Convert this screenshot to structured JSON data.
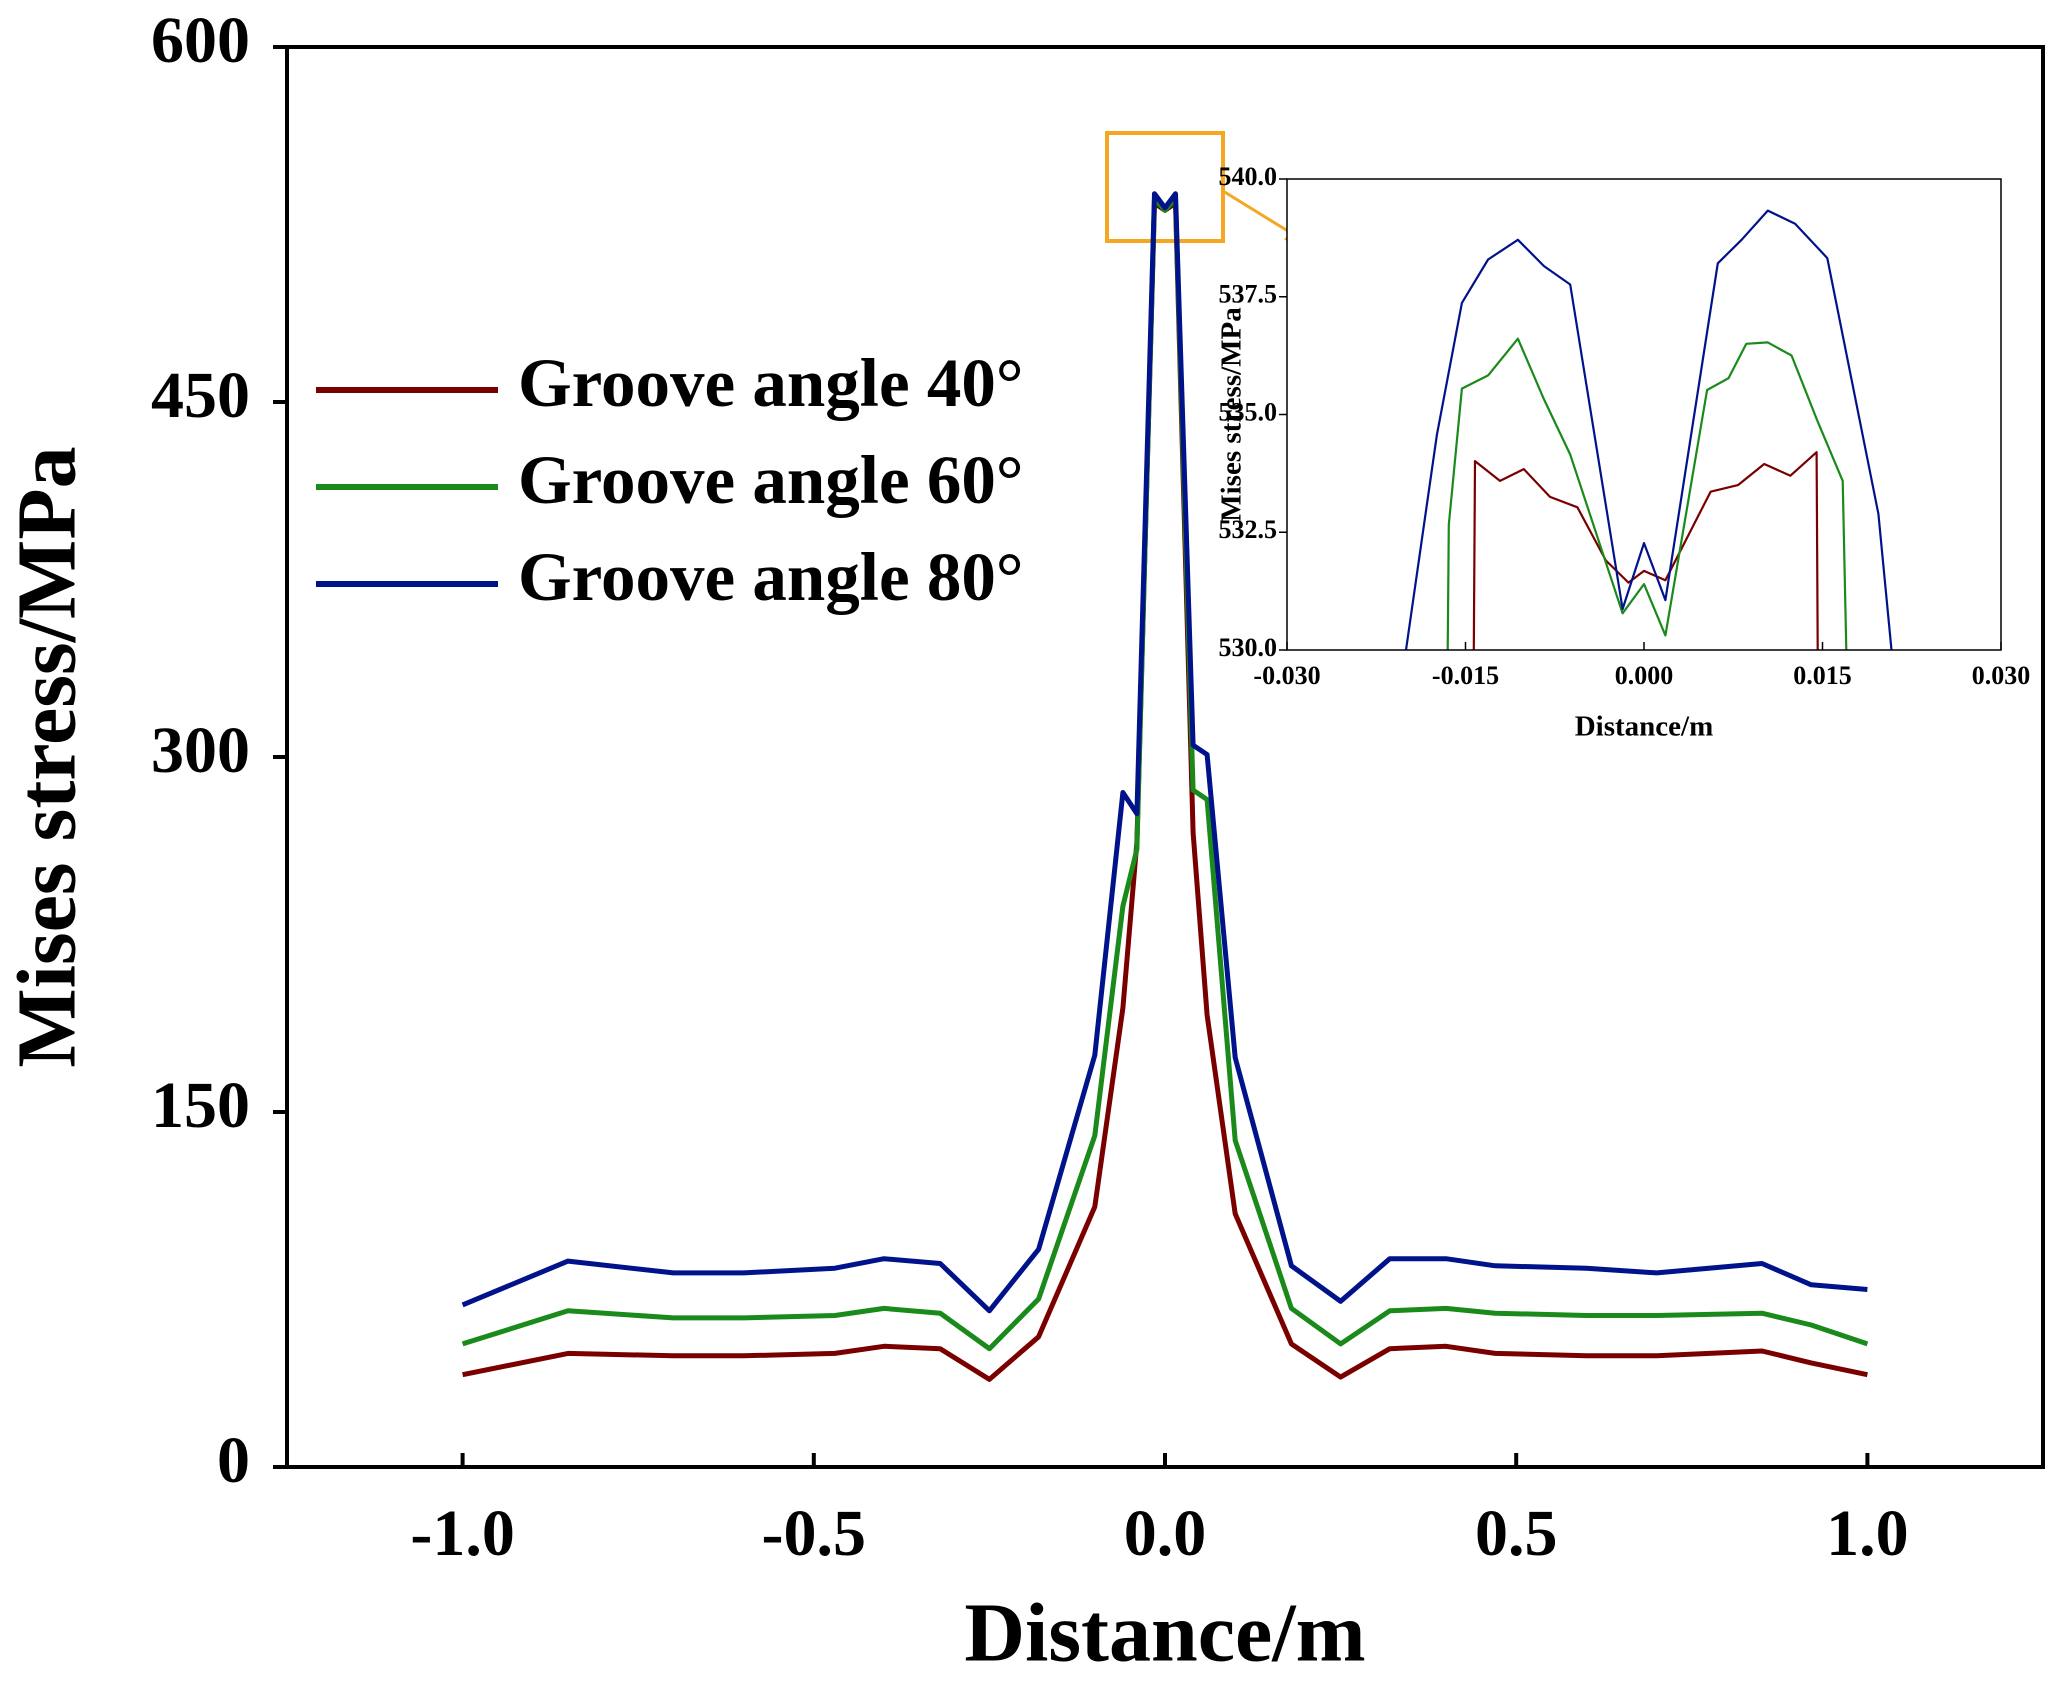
{
  "chart_data": [
    {
      "type": "line",
      "xlabel": "Distance/m",
      "ylabel": "Mises stress/MPa",
      "xlim": [
        -1.25,
        1.25
      ],
      "ylim": [
        0,
        600
      ],
      "xticks": [
        {
          "value": -1,
          "label": "-1.0"
        },
        -0.5,
        {
          "value": 0,
          "label": "0.0"
        },
        0.5,
        {
          "value": 1,
          "label": "1.0"
        }
      ],
      "yticks": [
        0,
        150,
        300,
        450,
        600
      ],
      "legend": "upper left",
      "series": [
        {
          "name": "Groove angle 40°",
          "color": "#7a0000",
          "x": [
            -1,
            -0.85,
            -0.7,
            -0.6,
            -0.47,
            -0.4,
            -0.32,
            -0.25,
            -0.18,
            -0.1,
            -0.06,
            -0.04,
            -0.015,
            0,
            0.015,
            0.04,
            0.06,
            0.1,
            0.18,
            0.25,
            0.32,
            0.4,
            0.47,
            0.6,
            0.7,
            0.85,
            0.92,
            1
          ],
          "values": [
            39,
            48,
            47,
            47,
            48,
            51,
            50,
            37,
            55,
            110,
            194,
            264,
            534,
            531,
            534,
            268,
            191,
            107,
            52,
            38,
            50,
            51,
            48,
            47,
            47,
            49,
            44,
            39
          ]
        },
        {
          "name": "Groove angle 60°",
          "color": "#1a8a1a",
          "x": [
            -1,
            -0.85,
            -0.7,
            -0.6,
            -0.47,
            -0.4,
            -0.32,
            -0.25,
            -0.18,
            -0.1,
            -0.06,
            -0.04,
            -0.015,
            0,
            0.015,
            0.04,
            0.06,
            0.1,
            0.18,
            0.25,
            0.32,
            0.4,
            0.47,
            0.6,
            0.7,
            0.85,
            0.92,
            1
          ],
          "values": [
            52,
            66,
            63,
            63,
            64,
            67,
            65,
            50,
            71,
            140,
            237,
            261,
            536,
            531,
            536,
            286,
            282,
            138,
            67,
            52,
            66,
            67,
            65,
            64,
            64,
            65,
            60,
            52
          ]
        },
        {
          "name": "Groove angle 80°",
          "color": "#00138a",
          "x": [
            -1,
            -0.85,
            -0.7,
            -0.6,
            -0.47,
            -0.4,
            -0.32,
            -0.25,
            -0.18,
            -0.1,
            -0.06,
            -0.04,
            -0.015,
            0,
            0.015,
            0.04,
            0.06,
            0.1,
            0.18,
            0.25,
            0.32,
            0.4,
            0.47,
            0.6,
            0.7,
            0.85,
            0.92,
            1
          ],
          "values": [
            68.5,
            87,
            82,
            82,
            84,
            88,
            86,
            66,
            92,
            174,
            285,
            276,
            538,
            532,
            538,
            305,
            301,
            173,
            85,
            70,
            88,
            88,
            85,
            84,
            82,
            86,
            77,
            75
          ]
        }
      ]
    },
    {
      "type": "line",
      "xlabel": "Distance/m",
      "ylabel": "Mises stress/MPa",
      "xlim": [
        -0.03,
        0.03
      ],
      "ylim": [
        530,
        540
      ],
      "xticks": [
        {
          "value": -0.03,
          "label": "-0.030"
        },
        -0.015,
        {
          "value": 0,
          "label": "0.000"
        },
        0.015,
        {
          "value": 0.03,
          "label": "0.030"
        }
      ],
      "yticks": [
        {
          "value": 530,
          "label": "530.0"
        },
        532.5,
        {
          "value": 535,
          "label": "535.0"
        },
        537.5,
        {
          "value": 540,
          "label": "540.0"
        }
      ],
      "series": [
        {
          "color": "#7a0000",
          "x": [
            -0.0143,
            -0.0142,
            -0.0121,
            -0.0101,
            -0.0079,
            -0.0056,
            -0.0032,
            -0.0013,
            0,
            0.0018,
            0.0056,
            0.0079,
            0.0101,
            0.0123,
            0.0145,
            0.0146
          ],
          "values": [
            530,
            534.01,
            533.59,
            533.84,
            533.25,
            533.03,
            531.9,
            531.43,
            531.68,
            531.48,
            533.36,
            533.5,
            533.95,
            533.7,
            534.2,
            530
          ]
        },
        {
          "color": "#1a8a1a",
          "x": [
            -0.0165,
            -0.0164,
            -0.0153,
            -0.0131,
            -0.0106,
            -0.0084,
            -0.0062,
            -0.0018,
            0,
            0.0018,
            0.0053,
            0.0071,
            0.0086,
            0.0104,
            0.0124,
            0.0146,
            0.0167,
            0.017
          ],
          "values": [
            530,
            532.66,
            535.55,
            535.83,
            536.61,
            535.32,
            534.15,
            530.78,
            531.4,
            530.31,
            535.52,
            535.77,
            536.5,
            536.53,
            536.25,
            534.85,
            533.59,
            530
          ]
        },
        {
          "color": "#00138a",
          "x": [
            -0.02,
            -0.0174,
            -0.0153,
            -0.0131,
            -0.0106,
            -0.0084,
            -0.0062,
            -0.0018,
            0,
            0.0018,
            0.0062,
            0.0082,
            0.0104,
            0.0127,
            0.0154,
            0.0197,
            0.0208
          ],
          "values": [
            530,
            534.57,
            537.37,
            538.29,
            538.71,
            538.15,
            537.76,
            530.87,
            532.27,
            531.06,
            538.21,
            538.71,
            539.33,
            539.05,
            538.32,
            532.89,
            530
          ]
        }
      ]
    }
  ]
}
